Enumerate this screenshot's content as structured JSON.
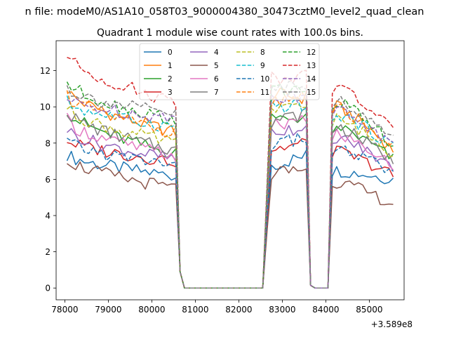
{
  "chart_data": {
    "type": "line",
    "suptitle": "n file: modeM0/AS1A10_058T03_9000004380_30473cztM0_level2_quad_clean",
    "title": "Quadrant 1 module wise count rates with 100.0s bins.",
    "xlabel": "",
    "ylabel": "",
    "offset_label": "+3.589e8",
    "xlim": [
      77800,
      85800
    ],
    "ylim": [
      -0.65,
      13.65
    ],
    "xticks": [
      78000,
      79000,
      80000,
      81000,
      82000,
      83000,
      84000,
      85000
    ],
    "xtick_labels": [
      "78000",
      "79000",
      "80000",
      "81000",
      "82000",
      "83000",
      "84000",
      "85000"
    ],
    "yticks": [
      0,
      2,
      4,
      6,
      8,
      10,
      12
    ],
    "ytick_labels": [
      "0",
      "2",
      "4",
      "6",
      "8",
      "10",
      "12"
    ],
    "bin_size_s": 100,
    "segments_x": [
      [
        78050,
        80650
      ],
      [
        82650,
        83550
      ],
      [
        84150,
        85550
      ]
    ],
    "series": [
      {
        "name": "0",
        "color": "#1f77b4",
        "dash": "solid",
        "levels": [
          7.4,
          6.2,
          6.7,
          7.3,
          6.5,
          6.0
        ]
      },
      {
        "name": "1",
        "color": "#ff7f0e",
        "dash": "solid",
        "levels": [
          11.0,
          8.6,
          10.7,
          10.5,
          10.1,
          7.6
        ]
      },
      {
        "name": "2",
        "color": "#2ca02c",
        "dash": "solid",
        "levels": [
          9.9,
          7.4,
          9.2,
          9.5,
          9.0,
          7.1
        ]
      },
      {
        "name": "3",
        "color": "#d62728",
        "dash": "solid",
        "levels": [
          8.2,
          7.0,
          7.6,
          8.0,
          7.6,
          6.2
        ]
      },
      {
        "name": "4",
        "color": "#9467bd",
        "dash": "solid",
        "levels": [
          8.8,
          7.1,
          8.6,
          8.9,
          8.4,
          6.6
        ]
      },
      {
        "name": "5",
        "color": "#8c564b",
        "dash": "solid",
        "levels": [
          7.2,
          5.5,
          6.3,
          6.6,
          5.9,
          4.6
        ]
      },
      {
        "name": "6",
        "color": "#e377c2",
        "dash": "solid",
        "levels": [
          9.3,
          7.3,
          8.9,
          9.2,
          8.6,
          6.7
        ]
      },
      {
        "name": "7",
        "color": "#7f7f7f",
        "dash": "solid",
        "levels": [
          9.8,
          7.6,
          9.2,
          9.6,
          9.0,
          7.0
        ]
      },
      {
        "name": "8",
        "color": "#bcbd22",
        "dash": "dashed",
        "levels": [
          10.0,
          8.0,
          9.7,
          10.0,
          9.4,
          7.4
        ]
      },
      {
        "name": "9",
        "color": "#17becf",
        "dash": "dashed",
        "levels": [
          10.3,
          8.9,
          10.0,
          10.1,
          9.7,
          7.8
        ]
      },
      {
        "name": "10",
        "color": "#1f77b4",
        "dash": "dashed",
        "levels": [
          8.1,
          6.8,
          7.9,
          8.3,
          7.8,
          6.3
        ]
      },
      {
        "name": "11",
        "color": "#ff7f0e",
        "dash": "dashed",
        "levels": [
          10.7,
          8.6,
          10.2,
          10.7,
          10.0,
          7.7
        ]
      },
      {
        "name": "12",
        "color": "#2ca02c",
        "dash": "dashed",
        "levels": [
          11.4,
          9.3,
          10.9,
          11.0,
          10.4,
          7.9
        ]
      },
      {
        "name": "13",
        "color": "#d62728",
        "dash": "dashed",
        "levels": [
          12.9,
          10.3,
          11.6,
          11.7,
          11.3,
          8.6
        ]
      },
      {
        "name": "14",
        "color": "#9467bd",
        "dash": "dashed",
        "levels": [
          10.4,
          9.4,
          10.4,
          10.6,
          10.0,
          7.8
        ]
      },
      {
        "name": "15",
        "color": "#7f7f7f",
        "dash": "dashed",
        "levels": [
          11.1,
          9.6,
          11.1,
          11.3,
          10.5,
          8.2
        ]
      }
    ]
  }
}
